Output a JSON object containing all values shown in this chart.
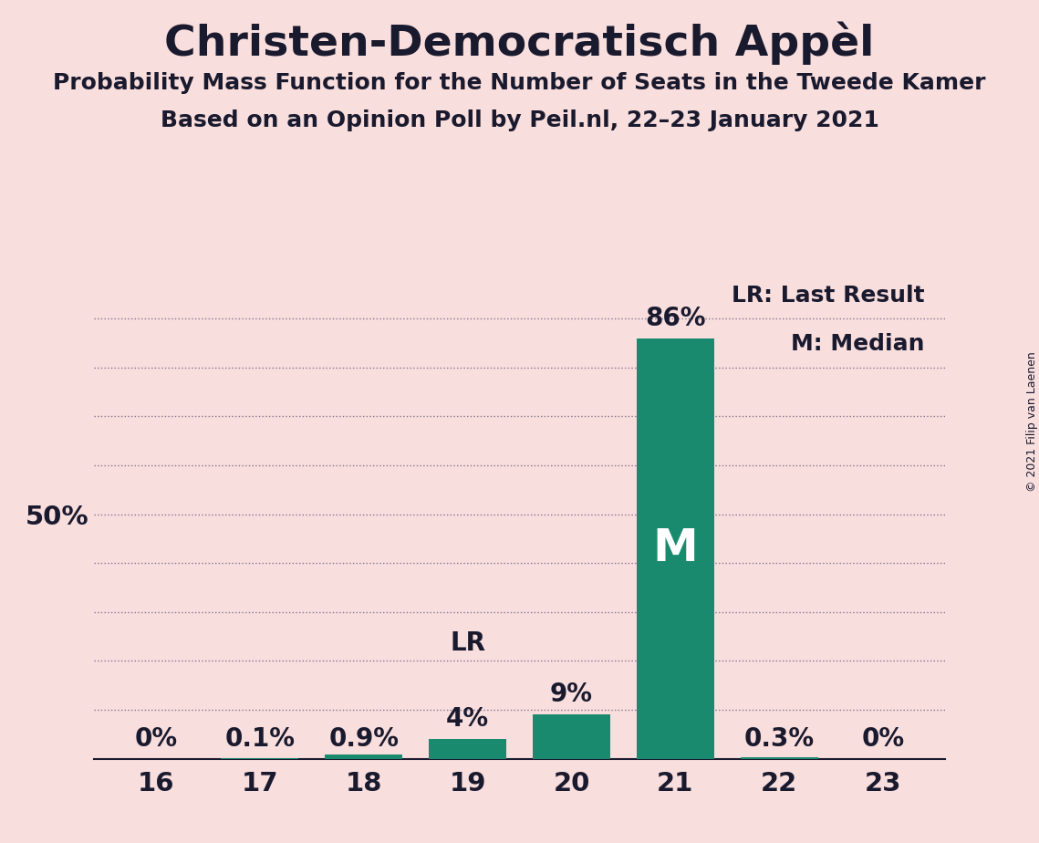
{
  "title": "Christen-Democratisch Appèl",
  "subtitle1": "Probability Mass Function for the Number of Seats in the Tweede Kamer",
  "subtitle2": "Based on an Opinion Poll by Peil.nl, 22–23 January 2021",
  "copyright": "© 2021 Filip van Laenen",
  "categories": [
    16,
    17,
    18,
    19,
    20,
    21,
    22,
    23
  ],
  "values": [
    0.0,
    0.1,
    0.9,
    4.0,
    9.0,
    86.0,
    0.3,
    0.0
  ],
  "bar_color": "#1a8a6e",
  "background_color": "#f9dede",
  "text_color": "#1a1a2e",
  "median_seat": 21,
  "last_result_seat": 19,
  "ylim": [
    0,
    100
  ],
  "grid_levels": [
    10,
    20,
    30,
    40,
    50,
    60,
    70,
    80,
    90
  ],
  "grid_color": "#333355",
  "legend_lr": "LR: Last Result",
  "legend_m": "M: Median",
  "median_label": "M",
  "lr_label": "LR",
  "value_labels": [
    "0%",
    "0.1%",
    "0.9%",
    "4%",
    "9%",
    "86%",
    "0.3%",
    "0%"
  ],
  "title_fontsize": 34,
  "subtitle_fontsize": 18,
  "tick_fontsize": 21,
  "label_fontsize": 20,
  "legend_fontsize": 18,
  "copyright_fontsize": 9
}
